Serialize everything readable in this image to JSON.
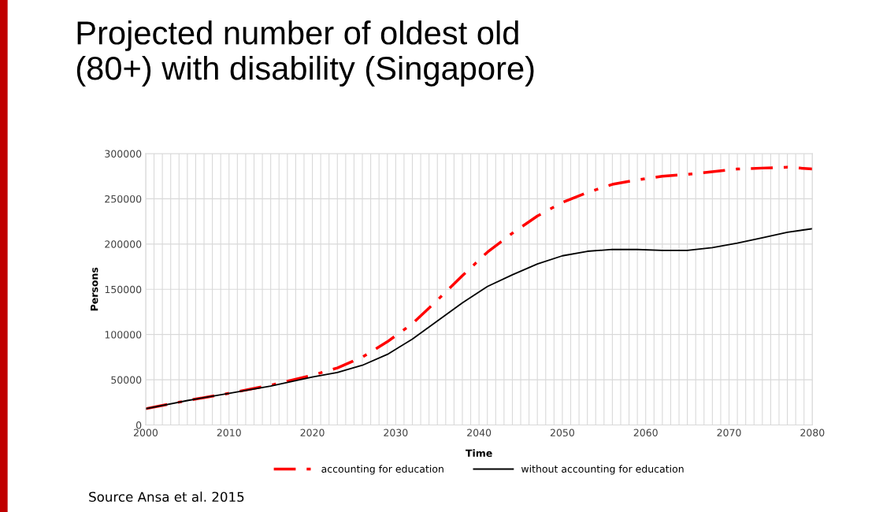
{
  "chart_data": {
    "type": "line",
    "title": "Projected number of oldest old\n(80+) with disability (Singapore)",
    "xlabel": "Time",
    "ylabel": "Persons",
    "x": [
      2000,
      2005,
      2010,
      2015,
      2020,
      2023,
      2026,
      2029,
      2032,
      2035,
      2038,
      2041,
      2044,
      2047,
      2050,
      2053,
      2056,
      2059,
      2062,
      2065,
      2068,
      2071,
      2074,
      2077,
      2080
    ],
    "series": [
      {
        "name": "accounting for education",
        "color": "#ff0000",
        "line_style": "dashdot",
        "values": [
          18000,
          27000,
          35000,
          44000,
          55000,
          63000,
          75000,
          92000,
          112000,
          138000,
          165000,
          191000,
          212000,
          231000,
          246000,
          257000,
          266000,
          271000,
          275000,
          277000,
          280000,
          283000,
          284000,
          285000,
          283000
        ]
      },
      {
        "name": "without accounting for education",
        "color": "#000000",
        "line_style": "solid",
        "values": [
          18000,
          27000,
          35000,
          43000,
          53000,
          58000,
          66000,
          78000,
          95000,
          115000,
          135000,
          153000,
          166000,
          178000,
          187000,
          192000,
          194000,
          194000,
          193000,
          193000,
          196000,
          201000,
          207000,
          213000,
          217000
        ]
      }
    ],
    "xlim": [
      2000,
      2080
    ],
    "xticks": [
      2000,
      {
        "value": 2001,
        "label": null
      },
      {
        "value": 2002,
        "label": null
      },
      {
        "value": 2003,
        "label": null
      },
      {
        "value": 2004,
        "label": null
      },
      {
        "value": 2005,
        "label": null
      },
      {
        "value": 2006,
        "label": null
      },
      {
        "value": 2007,
        "label": null
      },
      {
        "value": 2008,
        "label": null
      },
      {
        "value": 2009,
        "label": null
      },
      2010,
      {
        "value": 2011,
        "label": null
      },
      {
        "value": 2012,
        "label": null
      },
      {
        "value": 2013,
        "label": null
      },
      {
        "value": 2014,
        "label": null
      },
      {
        "value": 2015,
        "label": null
      },
      {
        "value": 2016,
        "label": null
      },
      {
        "value": 2017,
        "label": null
      },
      {
        "value": 2018,
        "label": null
      },
      {
        "value": 2019,
        "label": null
      },
      2020,
      {
        "value": 2021,
        "label": null
      },
      {
        "value": 2022,
        "label": null
      },
      {
        "value": 2023,
        "label": null
      },
      {
        "value": 2024,
        "label": null
      },
      {
        "value": 2025,
        "label": null
      },
      {
        "value": 2026,
        "label": null
      },
      {
        "value": 2027,
        "label": null
      },
      {
        "value": 2028,
        "label": null
      },
      {
        "value": 2029,
        "label": null
      },
      2030,
      {
        "value": 2031,
        "label": null
      },
      {
        "value": 2032,
        "label": null
      },
      {
        "value": 2033,
        "label": null
      },
      {
        "value": 2034,
        "label": null
      },
      {
        "value": 2035,
        "label": null
      },
      {
        "value": 2036,
        "label": null
      },
      {
        "value": 2037,
        "label": null
      },
      {
        "value": 2038,
        "label": null
      },
      {
        "value": 2039,
        "label": null
      },
      2040,
      {
        "value": 2041,
        "label": null
      },
      {
        "value": 2042,
        "label": null
      },
      {
        "value": 2043,
        "label": null
      },
      {
        "value": 2044,
        "label": null
      },
      {
        "value": 2045,
        "label": null
      },
      {
        "value": 2046,
        "label": null
      },
      {
        "value": 2047,
        "label": null
      },
      {
        "value": 2048,
        "label": null
      },
      {
        "value": 2049,
        "label": null
      },
      2050,
      {
        "value": 2051,
        "label": null
      },
      {
        "value": 2052,
        "label": null
      },
      {
        "value": 2053,
        "label": null
      },
      {
        "value": 2054,
        "label": null
      },
      {
        "value": 2055,
        "label": null
      },
      {
        "value": 2056,
        "label": null
      },
      {
        "value": 2057,
        "label": null
      },
      {
        "value": 2058,
        "label": null
      },
      {
        "value": 2059,
        "label": null
      },
      2060,
      {
        "value": 2061,
        "label": null
      },
      {
        "value": 2062,
        "label": null
      },
      {
        "value": 2063,
        "label": null
      },
      {
        "value": 2064,
        "label": null
      },
      {
        "value": 2065,
        "label": null
      },
      {
        "value": 2066,
        "label": null
      },
      {
        "value": 2067,
        "label": null
      },
      {
        "value": 2068,
        "label": null
      },
      {
        "value": 2069,
        "label": null
      },
      2070,
      {
        "value": 2071,
        "label": null
      },
      {
        "value": 2072,
        "label": null
      },
      {
        "value": 2073,
        "label": null
      },
      {
        "value": 2074,
        "label": null
      },
      {
        "value": 2075,
        "label": null
      },
      {
        "value": 2076,
        "label": null
      },
      {
        "value": 2077,
        "label": null
      },
      {
        "value": 2078,
        "label": null
      },
      {
        "value": 2079,
        "label": null
      },
      2080
    ],
    "ylim": [
      0,
      300000
    ],
    "yticks": [
      0,
      50000,
      100000,
      150000,
      200000,
      250000,
      300000
    ],
    "grid": true,
    "legend": "bottom",
    "marker": "none",
    "annotations": [
      "Source Ansa et al. 2015"
    ]
  }
}
